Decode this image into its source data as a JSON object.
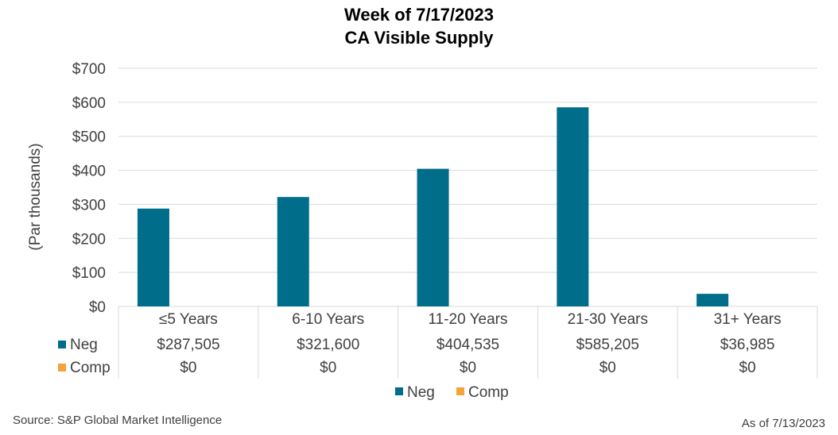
{
  "title": "Week of 7/17/2023",
  "subtitle": "CA Visible Supply",
  "source": "Source: S&P Global Market Intelligence",
  "as_of": "As of 7/13/2023",
  "colors": {
    "Neg": "#006D8A",
    "Comp": "#F5A23A",
    "axis": "#D9D9D9",
    "text": "#404040"
  },
  "chart_data": {
    "type": "bar",
    "title": "Week of 7/17/2023",
    "subtitle": "CA Visible Supply",
    "ylabel": "(Par thousands)",
    "ylim": [
      0,
      700
    ],
    "yticks": [
      0,
      100,
      200,
      300,
      400,
      500,
      600,
      700
    ],
    "ytick_labels": [
      "$0",
      "$100",
      "$200",
      "$300",
      "$400",
      "$500",
      "$600",
      "$700"
    ],
    "grid": true,
    "legend_position": "bottom",
    "categories": [
      "≤5 Years",
      "6-10 Years",
      "11-20 Years",
      "21-30 Years",
      "31+ Years"
    ],
    "series": [
      {
        "name": "Neg",
        "values": [
          287.505,
          321.6,
          404.535,
          585.205,
          36.985
        ],
        "labels": [
          "$287,505",
          "$321,600",
          "$404,535",
          "$585,205",
          "$36,985"
        ]
      },
      {
        "name": "Comp",
        "values": [
          0,
          0,
          0,
          0,
          0
        ],
        "labels": [
          "$0",
          "$0",
          "$0",
          "$0",
          "$0"
        ]
      }
    ]
  }
}
